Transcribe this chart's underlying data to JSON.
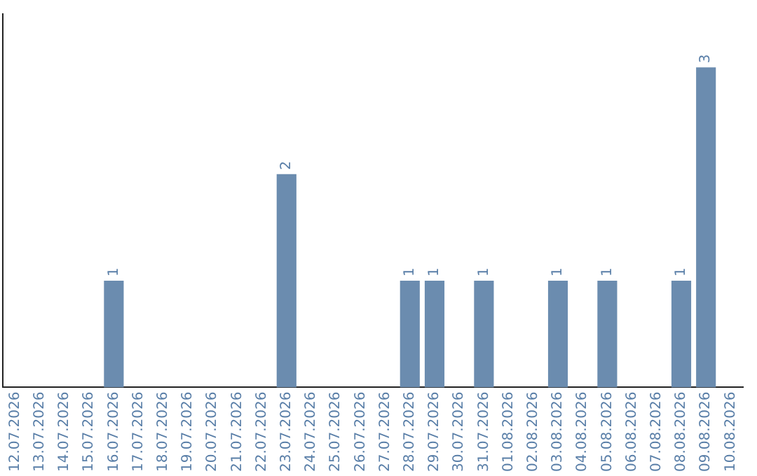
{
  "chart_data": {
    "type": "bar",
    "categories": [
      "12.07.2026",
      "13.07.2026",
      "14.07.2026",
      "15.07.2026",
      "16.07.2026",
      "17.07.2026",
      "18.07.2026",
      "19.07.2026",
      "20.07.2026",
      "21.07.2026",
      "22.07.2026",
      "23.07.2026",
      "24.07.2026",
      "25.07.2026",
      "26.07.2026",
      "27.07.2026",
      "28.07.2026",
      "29.07.2026",
      "30.07.2026",
      "31.07.2026",
      "01.08.2026",
      "02.08.2026",
      "03.08.2026",
      "04.08.2026",
      "05.08.2026",
      "06.08.2026",
      "07.08.2026",
      "08.08.2026",
      "09.08.2026",
      "10.08.2026"
    ],
    "values": [
      0,
      0,
      0,
      0,
      1,
      0,
      0,
      0,
      0,
      0,
      0,
      2,
      0,
      0,
      0,
      0,
      1,
      1,
      0,
      1,
      0,
      0,
      1,
      0,
      1,
      0,
      0,
      1,
      3,
      0
    ],
    "value_labels": [
      null,
      null,
      null,
      null,
      "1",
      null,
      null,
      null,
      null,
      null,
      null,
      "2",
      null,
      null,
      null,
      null,
      "1",
      "1",
      null,
      "1",
      null,
      null,
      "1",
      null,
      "1",
      null,
      null,
      "1",
      "3",
      null
    ],
    "color": "#6b8caf",
    "grid": false,
    "legend": false
  }
}
